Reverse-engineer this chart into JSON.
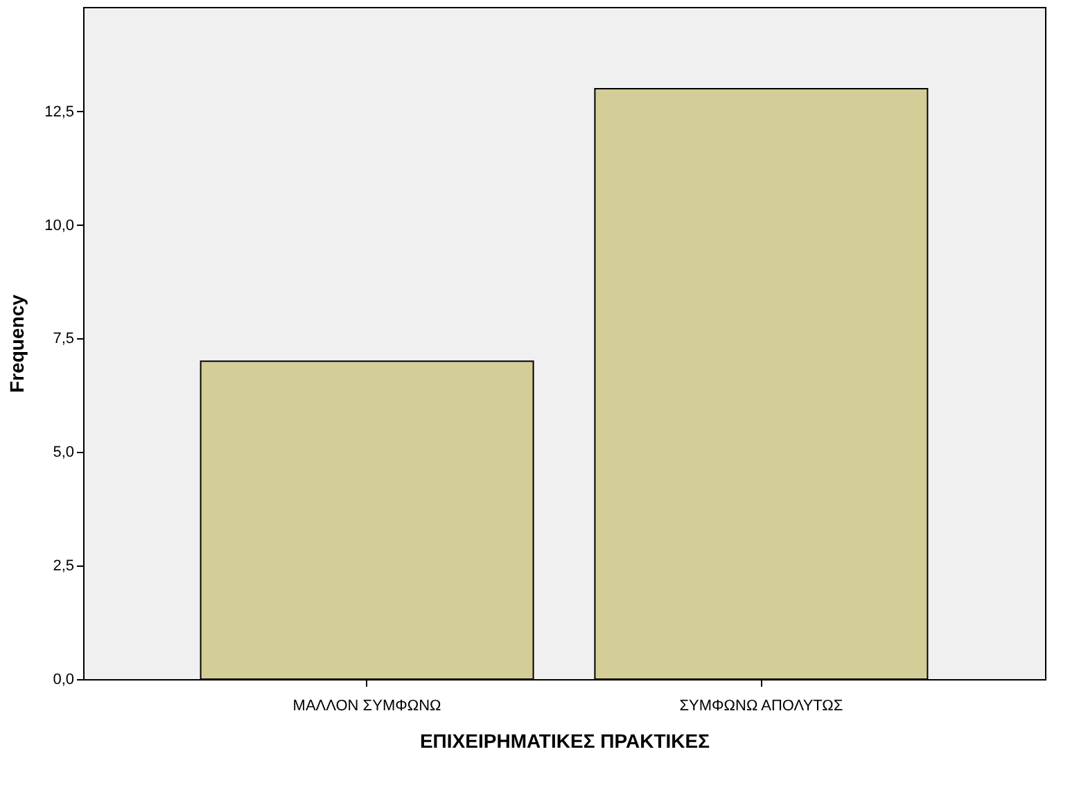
{
  "chart_data": {
    "type": "bar",
    "xlabel": "ΕΠΙΧΕΙΡΗΜΑΤΙΚΕΣ  ΠΡΑΚΤΙΚΕΣ",
    "ylabel": "Frequency",
    "categories": [
      "ΜΑΛΛΟΝ ΣΥΜΦΩΝΩ",
      "ΣΥΜΦΩΝΩ ΑΠΟΛΥΤΩΣ"
    ],
    "values": [
      7,
      13
    ],
    "color": "#d3ce97",
    "ylim": [
      0,
      14.8
    ],
    "yticks": [
      {
        "value": 0,
        "label": "0,0"
      },
      {
        "value": 2.5,
        "label": "2,5"
      },
      {
        "value": 5,
        "label": "5,0"
      },
      {
        "value": 7.5,
        "label": "7,5"
      },
      {
        "value": 10,
        "label": "10,0"
      },
      {
        "value": 12.5,
        "label": "12,5"
      }
    ],
    "grid": false
  }
}
